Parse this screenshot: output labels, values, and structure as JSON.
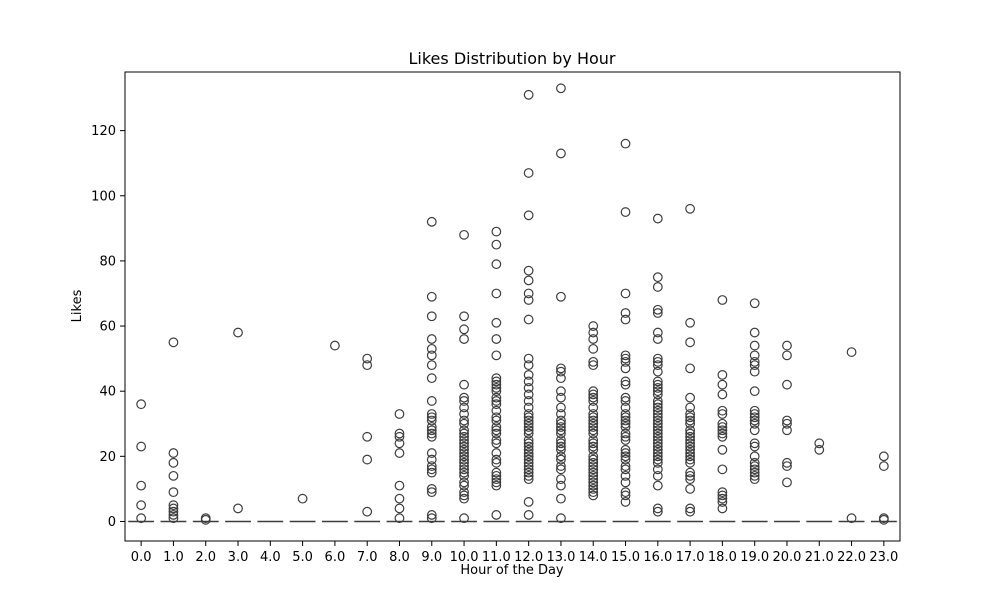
{
  "chart_data": {
    "type": "box",
    "title": "Likes Distribution by Hour",
    "xlabel": "Hour of the Day",
    "ylabel": "Likes",
    "ylim": [
      -6,
      138
    ],
    "yticks": [
      0,
      20,
      40,
      60,
      80,
      100,
      120
    ],
    "categories": [
      "0.0",
      "1.0",
      "2.0",
      "3.0",
      "4.0",
      "5.0",
      "6.0",
      "7.0",
      "8.0",
      "9.0",
      "10.0",
      "11.0",
      "12.0",
      "13.0",
      "14.0",
      "15.0",
      "16.0",
      "17.0",
      "18.0",
      "19.0",
      "20.0",
      "21.0",
      "22.0",
      "23.0"
    ],
    "box_value": 0,
    "outliers": [
      [
        36,
        23,
        11,
        5,
        1
      ],
      [
        55,
        21,
        18,
        14,
        9,
        5,
        4,
        3,
        2,
        1
      ],
      [
        1,
        0.5
      ],
      [
        58,
        4
      ],
      [],
      [
        7
      ],
      [
        54
      ],
      [
        50,
        48,
        26,
        19,
        3
      ],
      [
        33,
        27,
        26,
        24,
        21,
        11,
        7,
        4,
        1
      ],
      [
        92,
        69,
        63,
        56,
        53,
        51,
        48,
        44,
        37,
        33,
        32,
        31,
        29,
        28,
        27,
        26,
        21,
        19,
        17,
        16,
        15,
        10,
        9,
        2,
        1
      ],
      [
        88,
        63,
        59,
        56,
        42,
        38,
        37,
        35,
        33,
        31,
        30,
        28,
        27,
        26,
        25,
        24,
        23,
        22,
        21,
        20,
        19,
        18,
        17,
        16,
        15,
        14,
        12,
        11,
        9,
        8,
        7,
        1
      ],
      [
        89,
        85,
        79,
        70,
        61,
        56,
        51,
        44,
        43,
        42,
        41,
        40,
        38,
        37,
        36,
        34,
        32,
        31,
        29,
        28,
        27,
        25,
        24,
        21,
        19,
        18,
        15,
        14,
        13,
        12,
        11,
        2
      ],
      [
        131,
        107,
        94,
        77,
        74,
        70,
        68,
        62,
        50,
        48,
        45,
        43,
        41,
        39,
        37,
        35,
        33,
        32,
        31,
        30,
        29,
        28,
        27,
        25,
        24,
        23,
        22,
        21,
        20,
        19,
        18,
        17,
        16,
        15,
        14,
        13,
        6,
        2
      ],
      [
        133,
        113,
        69,
        47,
        46,
        44,
        40,
        38,
        35,
        33,
        31,
        30,
        29,
        28,
        27,
        25,
        24,
        23,
        22,
        20,
        19,
        17,
        16,
        13,
        11,
        7,
        1
      ],
      [
        60,
        58,
        56,
        53,
        49,
        48,
        40,
        39,
        38,
        37,
        35,
        33,
        32,
        31,
        30,
        29,
        28,
        27,
        25,
        24,
        23,
        22,
        20,
        19,
        18,
        17,
        16,
        15,
        14,
        13,
        12,
        11,
        10,
        9,
        8
      ],
      [
        116,
        95,
        70,
        64,
        62,
        51,
        50,
        49,
        47,
        43,
        42,
        38,
        37,
        35,
        33,
        32,
        31,
        30,
        29,
        27,
        26,
        25,
        22,
        21,
        20,
        19,
        17,
        16,
        14,
        12,
        9,
        8,
        6
      ],
      [
        93,
        75,
        72,
        65,
        64,
        58,
        56,
        50,
        49,
        48,
        46,
        43,
        42,
        41,
        40,
        39,
        37,
        36,
        35,
        34,
        33,
        32,
        31,
        30,
        29,
        28,
        27,
        26,
        25,
        24,
        23,
        22,
        21,
        20,
        19,
        18,
        16,
        14,
        11,
        4,
        3
      ],
      [
        96,
        61,
        55,
        47,
        38,
        35,
        33,
        32,
        31,
        30,
        28,
        27,
        26,
        25,
        24,
        23,
        22,
        21,
        20,
        19,
        18,
        15,
        14,
        13,
        10,
        4,
        3
      ],
      [
        68,
        45,
        42,
        39,
        34,
        33,
        30,
        29,
        28,
        27,
        26,
        22,
        16,
        9,
        8,
        7,
        6,
        4
      ],
      [
        67,
        58,
        54,
        51,
        49,
        48,
        46,
        40,
        34,
        33,
        32,
        31,
        30,
        28,
        24,
        23,
        20,
        18,
        17,
        16,
        15,
        14,
        13
      ],
      [
        54,
        51,
        42,
        31,
        30,
        28,
        18,
        17,
        12
      ],
      [
        24,
        22
      ],
      [
        52,
        1
      ],
      [
        20,
        17,
        1,
        0.5
      ]
    ]
  }
}
